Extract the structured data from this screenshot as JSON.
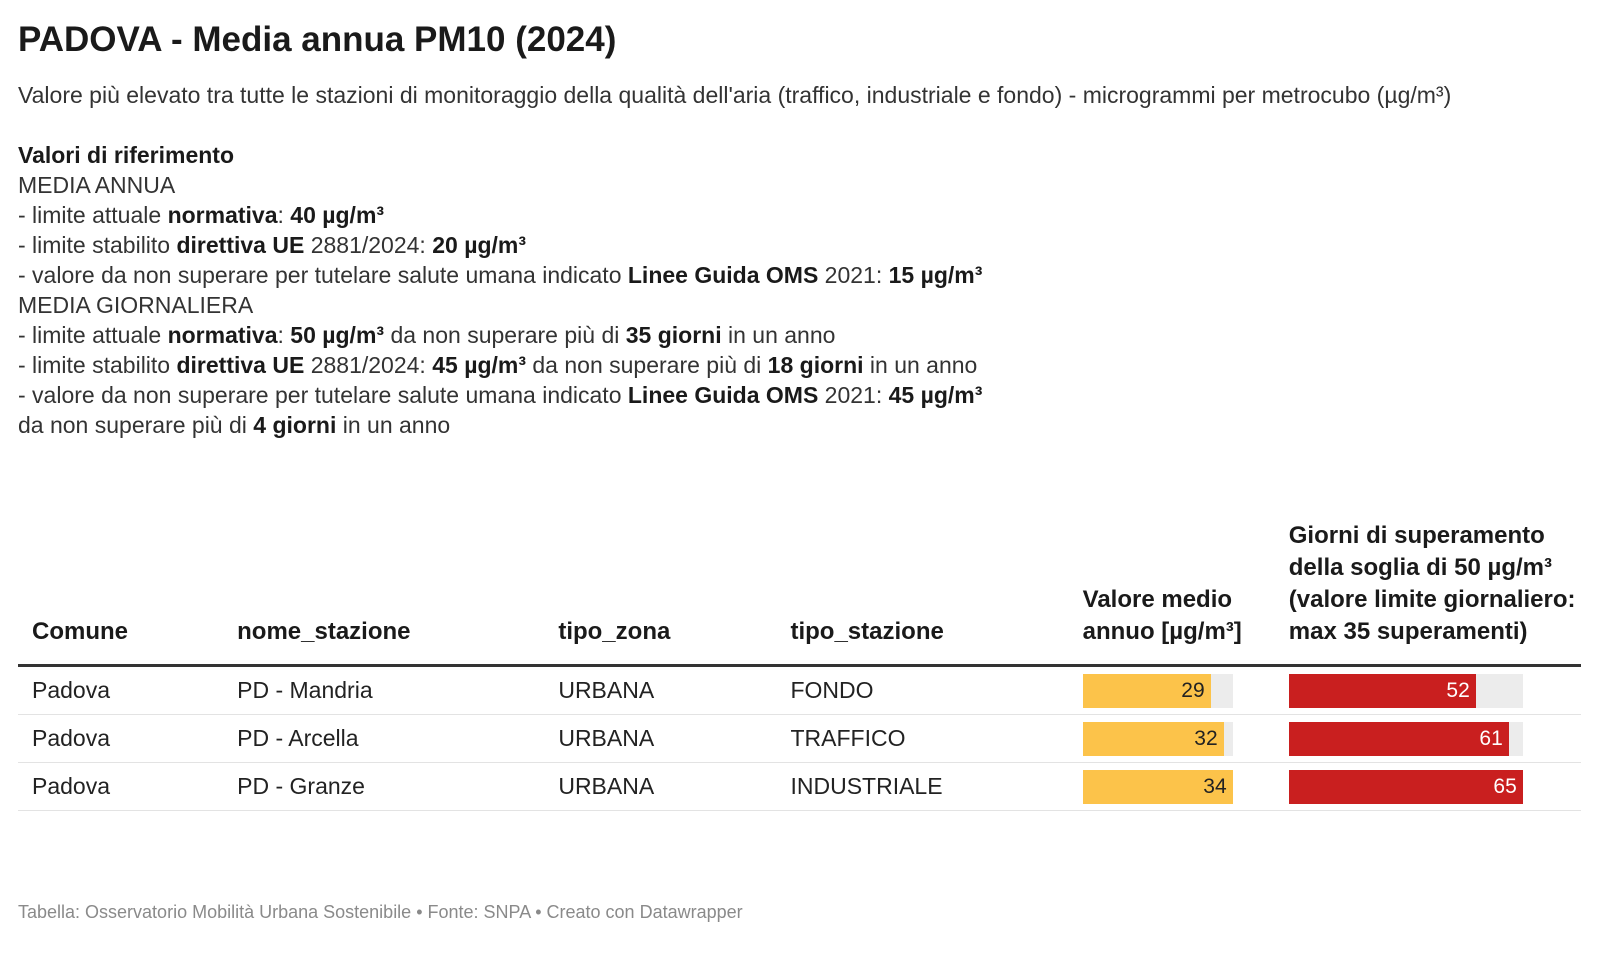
{
  "title": "PADOVA - Media annua PM10 (2024)",
  "subtitle": "Valore più elevato tra tutte le stazioni di monitoraggio della qualità dell'aria (traffico, industriale e fondo) - microgrammi per metrocubo (µg/m³)",
  "reference": {
    "heading": "Valori di riferimento",
    "annual_heading": "MEDIA ANNUA",
    "annual_lines": [
      [
        {
          "t": "- limite attuale "
        },
        {
          "t": "normativa",
          "b": true
        },
        {
          "t": ": "
        },
        {
          "t": "40 µg/m³",
          "b": true
        }
      ],
      [
        {
          "t": "- limite stabilito "
        },
        {
          "t": "direttiva UE",
          "b": true
        },
        {
          "t": " 2881/2024: "
        },
        {
          "t": "20 µg/m³",
          "b": true
        }
      ],
      [
        {
          "t": "- valore da non superare per tutelare salute umana indicato "
        },
        {
          "t": "Linee Guida OMS",
          "b": true
        },
        {
          "t": " 2021: "
        },
        {
          "t": "15 µg/m³",
          "b": true
        }
      ]
    ],
    "daily_heading": "MEDIA GIORNALIERA",
    "daily_lines": [
      [
        {
          "t": "- limite attuale "
        },
        {
          "t": "normativa",
          "b": true
        },
        {
          "t": ": "
        },
        {
          "t": "50 µg/m³",
          "b": true
        },
        {
          "t": " da non superare più di "
        },
        {
          "t": "35 giorni",
          "b": true
        },
        {
          "t": " in un anno"
        }
      ],
      [
        {
          "t": "- limite stabilito "
        },
        {
          "t": "direttiva UE",
          "b": true
        },
        {
          "t": " 2881/2024: "
        },
        {
          "t": "45 µg/m³",
          "b": true
        },
        {
          "t": " da non superare più di "
        },
        {
          "t": "18 giorni",
          "b": true
        },
        {
          "t": " in un anno"
        }
      ],
      [
        {
          "t": "- valore da non superare per tutelare salute umana indicato "
        },
        {
          "t": "Linee Guida OMS",
          "b": true
        },
        {
          "t": " 2021: "
        },
        {
          "t": "45 µg/m³",
          "b": true
        }
      ],
      [
        {
          "t": "da non superare più di "
        },
        {
          "t": "4 giorni",
          "b": true
        },
        {
          "t": " in un anno"
        }
      ]
    ]
  },
  "colors": {
    "annual_bar": "#fcc34a",
    "days_bar": "#c91f1f",
    "track": "#ececec"
  },
  "chart_data": {
    "type": "table",
    "columns": [
      "Comune",
      "nome_stazione",
      "tipo_zona",
      "tipo_stazione",
      "Valore medio annuo [µg/m³]",
      "Giorni di superamento della soglia di 50 µg/m³ (valore limite giornaliero: max 35 superamenti)"
    ],
    "rows": [
      {
        "comune": "Padova",
        "stazione": "PD - Mandria",
        "zona": "URBANA",
        "tipo": "FONDO",
        "media": 29,
        "giorni": 52
      },
      {
        "comune": "Padova",
        "stazione": "PD - Arcella",
        "zona": "URBANA",
        "tipo": "TRAFFICO",
        "media": 32,
        "giorni": 61
      },
      {
        "comune": "Padova",
        "stazione": "PD - Granze",
        "zona": "URBANA",
        "tipo": "INDUSTRIALE",
        "media": 34,
        "giorni": 65
      }
    ],
    "bar_scale": {
      "media_max": 34,
      "giorni_max": 65
    }
  },
  "footer": "Tabella: Osservatorio Mobilità Urbana Sostenibile • Fonte: SNPA • Creato con Datawrapper"
}
